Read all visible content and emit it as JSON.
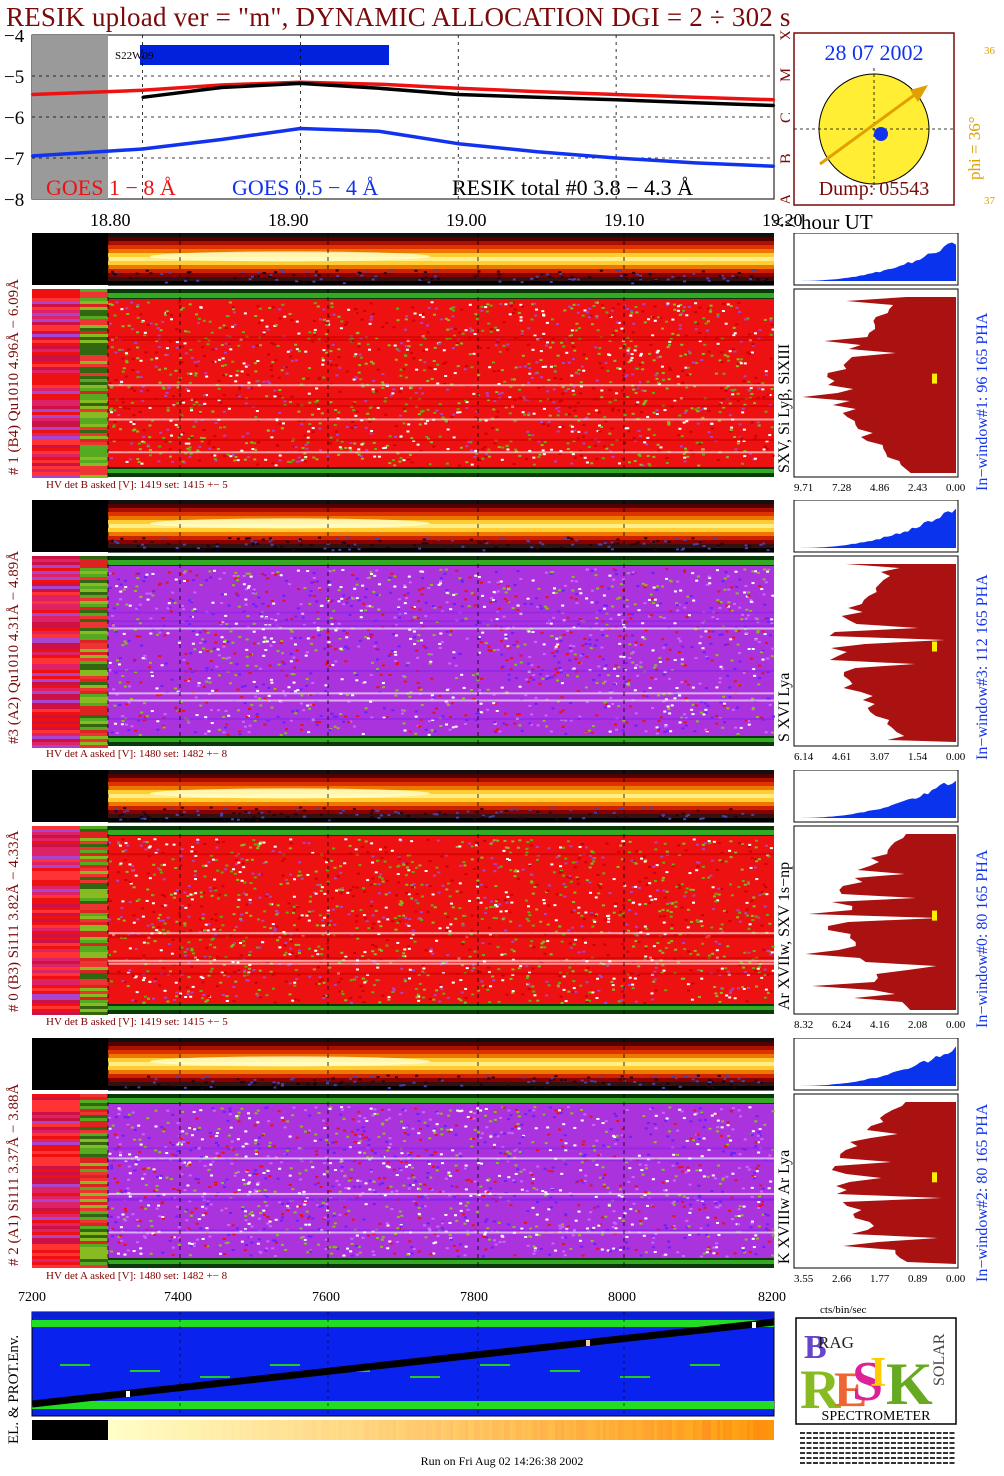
{
  "header": {
    "title": "RESIK upload ver = \"m\", DYNAMIC ALLOCATION  DGI =   2 ÷ 302 s"
  },
  "goes_panel": {
    "ytick_labels": [
      "−4",
      "−5",
      "−6",
      "−7",
      "−8"
    ],
    "class_labels": [
      "X",
      "M",
      "C",
      "B",
      "A"
    ],
    "segment_label": "S22W09",
    "legend_goes_long": "GOES 1 − 8 Å",
    "legend_goes_short": "GOES 0.5 − 4 Å",
    "legend_resik": "RESIK total #0  3.8 − 4.3 Å",
    "colors": {
      "goes_long": "#ee1111",
      "goes_short": "#1133ee",
      "resik": "#000000",
      "shade": "#9a9a9a",
      "segment": "#0022dd"
    }
  },
  "sun_panel": {
    "date": "28 07 2002",
    "dump": "Dump: 05543",
    "phi_label": "phi = 36°",
    "num_top": "36",
    "num_bottom": "37",
    "colors": {
      "disk": "#ffee33",
      "arrow": "#e0a000",
      "text": "#1133ee"
    }
  },
  "time_axis": {
    "labels": [
      "18.80",
      "18.90",
      "19.00",
      "19.10",
      "19.20"
    ],
    "unit_label": "<< hour UT"
  },
  "channels": [
    {
      "left_label": "# 1 (B4) Qu1010 4.96Å − 6.09Å",
      "line_label": "SXV, Si Lyβ, SiXIII",
      "window_label": "In−window#1:   96 165  PHA",
      "hv_text": "HV det B asked [V]:  1419 set:  1415 +−    5",
      "xticks": [
        "9.71",
        "7.28",
        "4.86",
        "2.43",
        "0.00"
      ],
      "base": "red"
    },
    {
      "left_label": "#3 (A2) Qu1010  4.31Å − 4.89Å",
      "line_label": "S XVI Lya",
      "window_label": "In−window#3:  112 165  PHA",
      "hv_text": "HV det A asked [V]:  1480 set:  1482 +−    8",
      "xticks": [
        "6.14",
        "4.61",
        "3.07",
        "1.54",
        "0.00"
      ],
      "base": "purple"
    },
    {
      "left_label": "# 0 (B3) Si111  3.82Å − 4.33Å",
      "line_label": "Ar XVIIw,  SXV 1s−np",
      "window_label": "In−window#0:   80 165  PHA",
      "hv_text": "HV det B asked [V]:  1419 set:  1415 +−    5",
      "xticks": [
        "8.32",
        "6.24",
        "4.16",
        "2.08",
        "0.00"
      ],
      "base": "red"
    },
    {
      "left_label": "# 2 (A1) Si111  3.37Å − 3.88Å",
      "line_label": "K XVIIIw  Ar Lya",
      "window_label": "In−window#2:   80 165  PHA",
      "hv_text": "HV det A asked [V]:  1480 set:  1482 +−    8",
      "xticks": [
        "3.55",
        "2.66",
        "1.77",
        "0.89",
        "0.00"
      ],
      "base": "purple"
    }
  ],
  "pha_axis_label": "cts/bin/sec",
  "bottom_axis": {
    "labels": [
      "7200",
      "7400",
      "7600",
      "7800",
      "8000",
      "8200"
    ]
  },
  "env_panel": {
    "label": "EL. & PROT.Env."
  },
  "logo": {
    "word_resik": "RESIK",
    "word_bragg": "BRAGG",
    "word_solar": "SOLAR",
    "caption": "SPECTROMETER"
  },
  "footer": {
    "run_text": "Run on Fri Aug 02 14:26:38 2002"
  },
  "chart_data": {
    "type": "line",
    "title": "RESIK upload ver = \"m\", DYNAMIC ALLOCATION  DGI =   2 ÷ 302 s",
    "x": [
      18.73,
      18.8,
      18.85,
      18.9,
      18.95,
      19.0,
      19.05,
      19.1,
      19.15,
      19.2
    ],
    "series": [
      {
        "name": "GOES 1 − 8 Å",
        "values": [
          -5.45,
          -5.35,
          -5.22,
          -5.15,
          -5.2,
          -5.3,
          -5.38,
          -5.45,
          -5.52,
          -5.58
        ]
      },
      {
        "name": "GOES 0.5 − 4 Å",
        "values": [
          -6.95,
          -6.78,
          -6.55,
          -6.28,
          -6.35,
          -6.65,
          -6.85,
          -7.0,
          -7.12,
          -7.2
        ]
      },
      {
        "name": "RESIK total #0  3.8 − 4.3 Å",
        "values": [
          -5.7,
          -5.52,
          -5.28,
          -5.18,
          -5.3,
          -5.45,
          -5.52,
          -5.58,
          -5.65,
          -5.72
        ]
      }
    ],
    "xlabel": "<< hour UT",
    "ylim": [
      -8,
      -4
    ],
    "xlim": [
      18.73,
      19.2
    ],
    "bottom_axis_range": [
      7200,
      8200
    ]
  }
}
